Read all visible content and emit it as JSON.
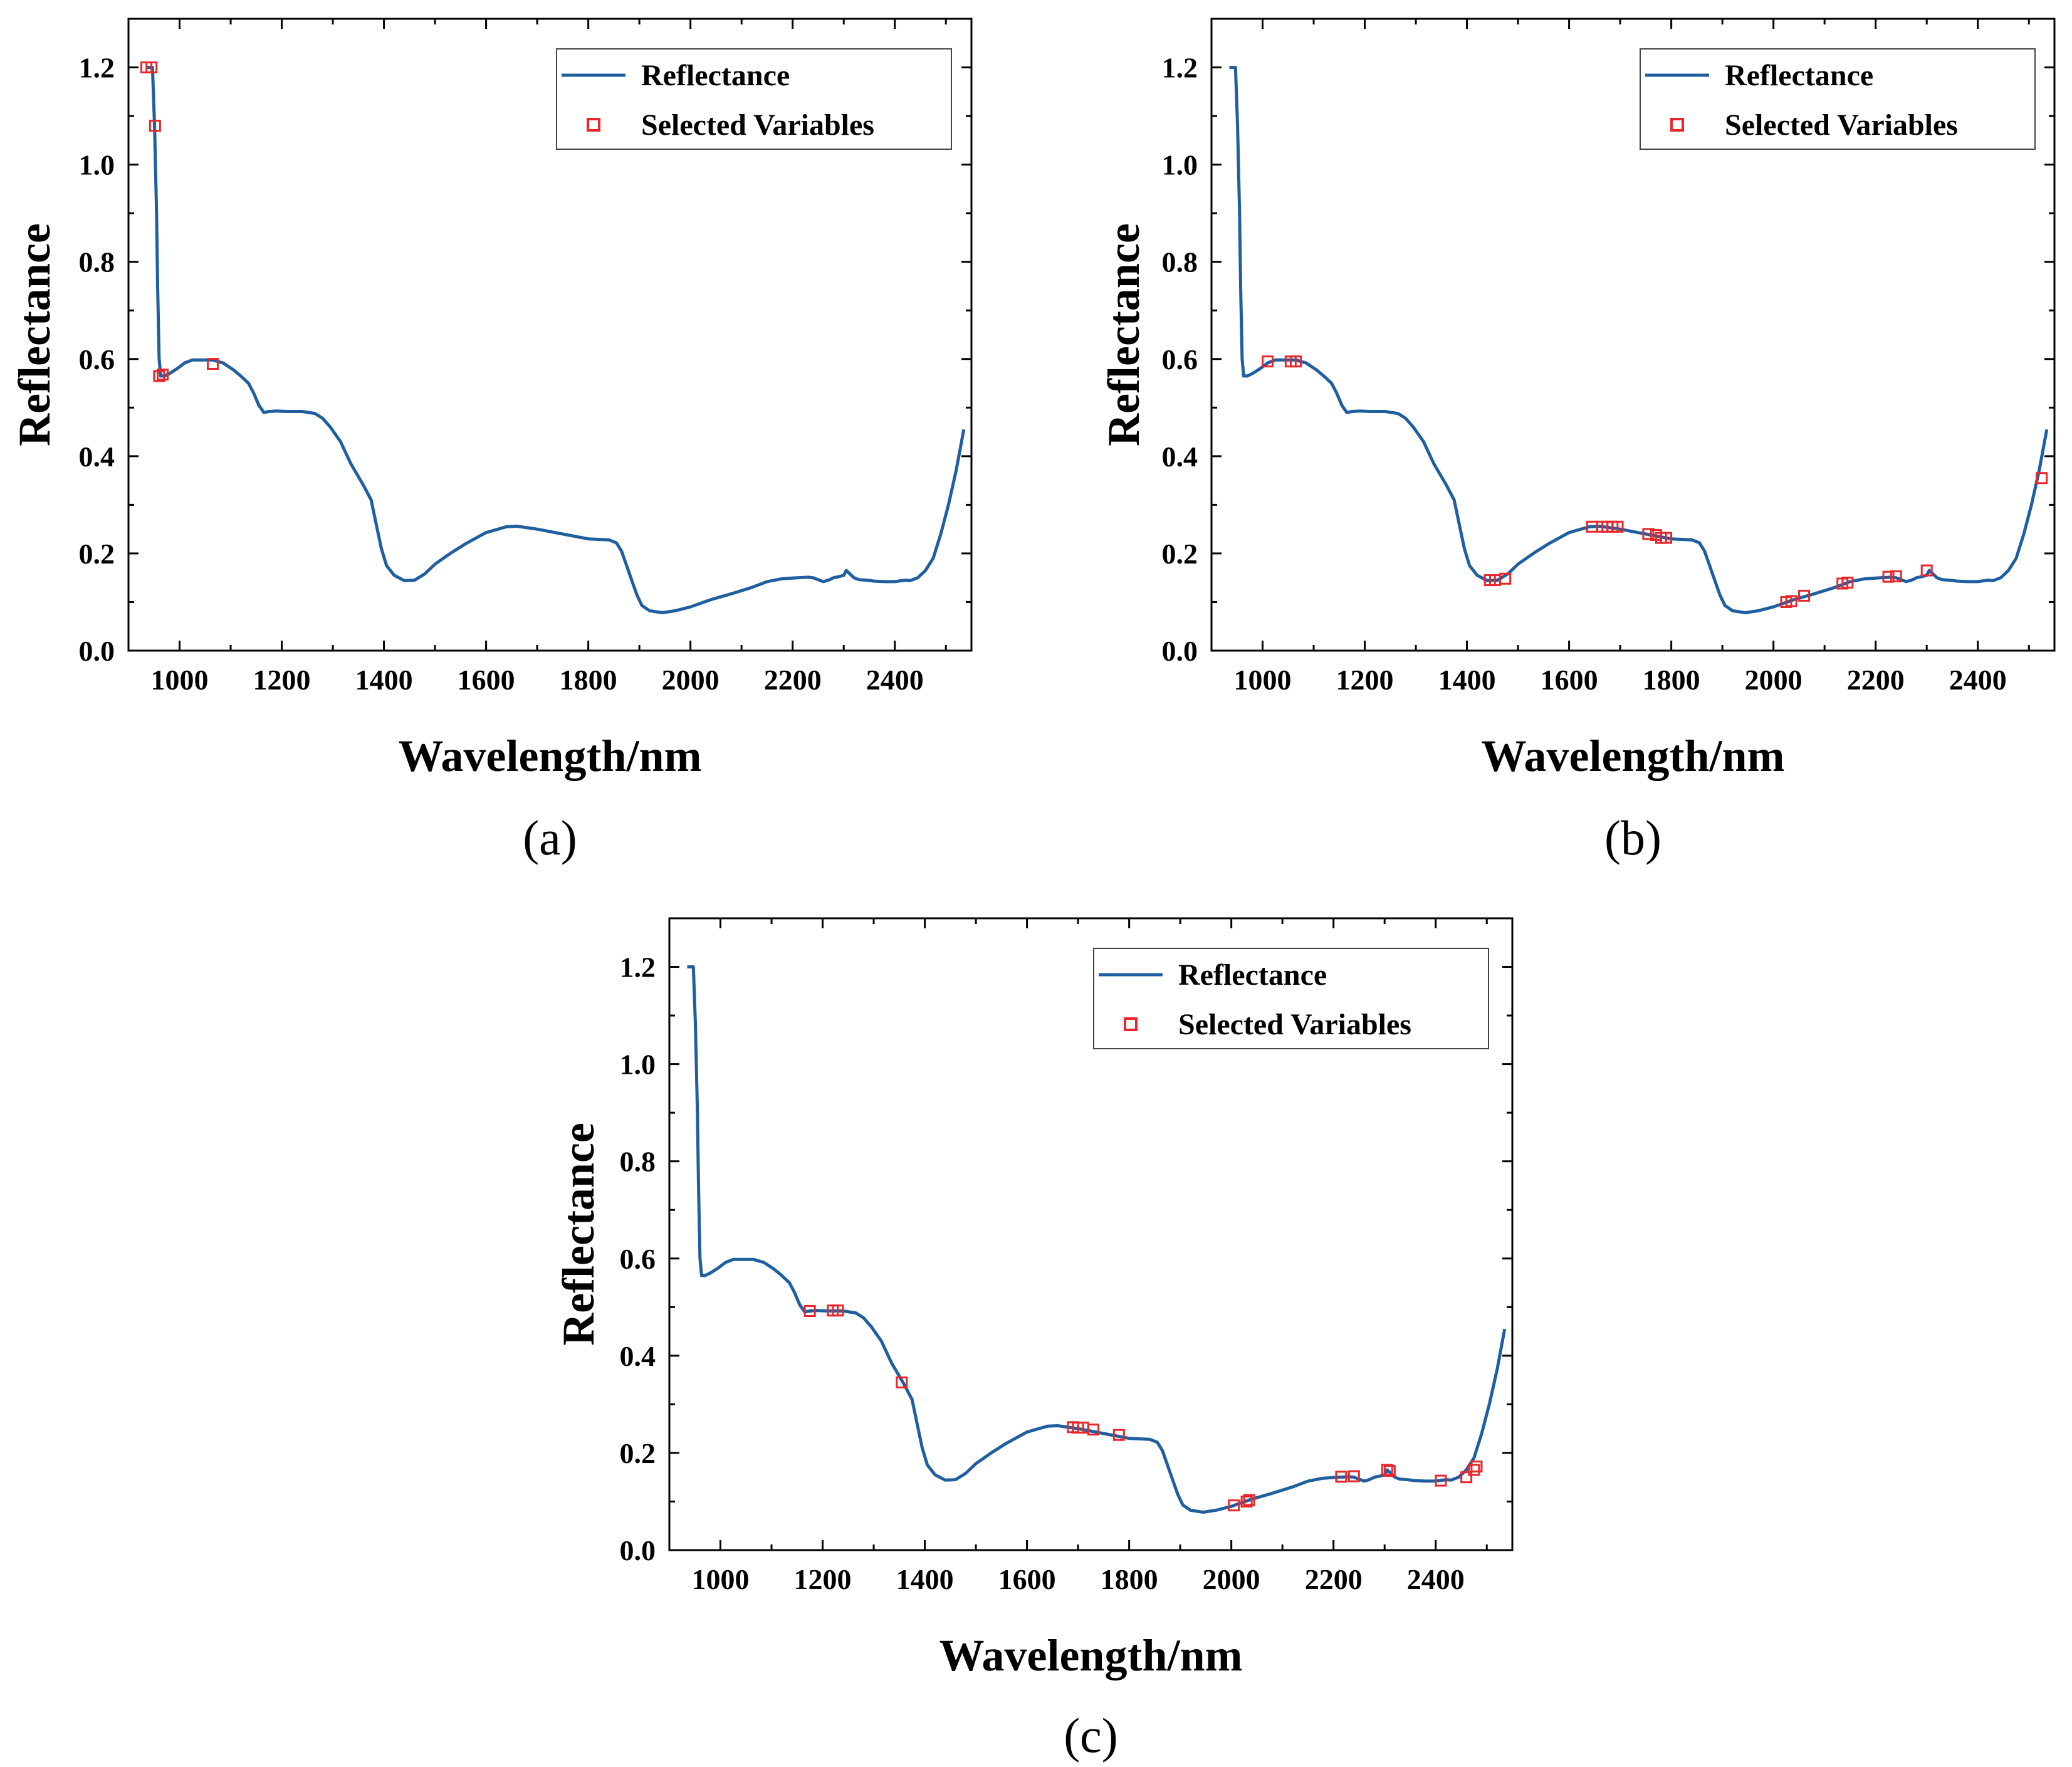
{
  "figure": {
    "panels": [
      {
        "id": "a",
        "caption": "(a)",
        "xlabel": "Wavelength/nm",
        "ylabel": "Reflectance",
        "legend": {
          "position": "top-right",
          "line_label": "Reflectance",
          "marker_label": "Selected Variables"
        }
      },
      {
        "id": "b",
        "caption": "(b)",
        "xlabel": "Wavelength/nm",
        "ylabel": "Reflectance",
        "legend": {
          "position": "top-right",
          "line_label": "Reflectance",
          "marker_label": "Selected Variables"
        }
      },
      {
        "id": "c",
        "caption": "(c)",
        "xlabel": "Wavelength/nm",
        "ylabel": "Reflectance",
        "legend": {
          "position": "top-right",
          "line_label": "Reflectance",
          "marker_label": "Selected Variables"
        }
      }
    ]
  },
  "colors": {
    "line": "#1f5fa0",
    "marker": "#e8262b",
    "axis": "#000000"
  },
  "chart_data": [
    {
      "type": "line",
      "panel": "a",
      "xlim": [
        900,
        2550
      ],
      "ylim": [
        0,
        1.3
      ],
      "xticks": [
        1000,
        1200,
        1400,
        1600,
        1800,
        2000,
        2200,
        2400
      ],
      "yticks": [
        0.0,
        0.2,
        0.4,
        0.6,
        0.8,
        1.0,
        1.2
      ],
      "grid": false,
      "series": [
        {
          "name": "Reflectance",
          "kind": "line",
          "x": [
            935,
            947,
            951,
            955,
            957,
            960,
            963,
            970,
            980,
            995,
            1010,
            1025,
            1045,
            1065,
            1085,
            1105,
            1120,
            1135,
            1145,
            1155,
            1165,
            1175,
            1190,
            1210,
            1240,
            1265,
            1280,
            1295,
            1315,
            1335,
            1360,
            1375,
            1385,
            1395,
            1405,
            1420,
            1440,
            1460,
            1480,
            1500,
            1530,
            1560,
            1600,
            1640,
            1660,
            1700,
            1760,
            1800,
            1840,
            1855,
            1865,
            1875,
            1885,
            1895,
            1905,
            1920,
            1945,
            1970,
            2000,
            2040,
            2080,
            2120,
            2150,
            2180,
            2210,
            2230,
            2240,
            2250,
            2260,
            2270,
            2280,
            2290,
            2300,
            2305,
            2310,
            2315,
            2320,
            2330,
            2345,
            2360,
            2380,
            2400,
            2420,
            2430,
            2445,
            2460,
            2475,
            2490,
            2505,
            2520,
            2535
          ],
          "y": [
            1.2,
            1.2,
            1.08,
            0.9,
            0.75,
            0.6,
            0.565,
            0.565,
            0.57,
            0.58,
            0.592,
            0.598,
            0.598,
            0.598,
            0.592,
            0.578,
            0.565,
            0.55,
            0.53,
            0.505,
            0.49,
            0.492,
            0.493,
            0.492,
            0.492,
            0.488,
            0.478,
            0.46,
            0.43,
            0.385,
            0.34,
            0.31,
            0.26,
            0.21,
            0.175,
            0.155,
            0.144,
            0.145,
            0.158,
            0.178,
            0.2,
            0.22,
            0.243,
            0.255,
            0.256,
            0.25,
            0.238,
            0.23,
            0.228,
            0.222,
            0.205,
            0.175,
            0.145,
            0.115,
            0.093,
            0.082,
            0.078,
            0.082,
            0.09,
            0.105,
            0.117,
            0.13,
            0.142,
            0.148,
            0.15,
            0.151,
            0.15,
            0.146,
            0.142,
            0.145,
            0.15,
            0.152,
            0.155,
            0.165,
            0.16,
            0.155,
            0.15,
            0.146,
            0.145,
            0.143,
            0.142,
            0.142,
            0.145,
            0.144,
            0.15,
            0.165,
            0.19,
            0.24,
            0.3,
            0.37,
            0.455
          ]
        },
        {
          "name": "Selected Variables",
          "kind": "marker",
          "x": [
            935,
            945,
            952,
            960,
            967,
            1065
          ],
          "y": [
            1.2,
            1.2,
            1.08,
            0.565,
            0.568,
            0.59
          ]
        }
      ]
    },
    {
      "type": "line",
      "panel": "b",
      "xlim": [
        900,
        2550
      ],
      "ylim": [
        0,
        1.3
      ],
      "xticks": [
        1000,
        1200,
        1400,
        1600,
        1800,
        2000,
        2200,
        2400
      ],
      "yticks": [
        0.0,
        0.2,
        0.4,
        0.6,
        0.8,
        1.0,
        1.2
      ],
      "grid": false,
      "series": [
        {
          "name": "Reflectance",
          "kind": "line",
          "x": [
            935,
            947,
            951,
            955,
            957,
            960,
            963,
            970,
            980,
            995,
            1010,
            1025,
            1045,
            1065,
            1085,
            1105,
            1120,
            1135,
            1145,
            1155,
            1165,
            1175,
            1190,
            1210,
            1240,
            1265,
            1280,
            1295,
            1315,
            1335,
            1360,
            1375,
            1385,
            1395,
            1405,
            1420,
            1440,
            1460,
            1480,
            1500,
            1530,
            1560,
            1600,
            1640,
            1660,
            1700,
            1760,
            1800,
            1840,
            1855,
            1865,
            1875,
            1885,
            1895,
            1905,
            1920,
            1945,
            1970,
            2000,
            2040,
            2080,
            2120,
            2150,
            2180,
            2210,
            2230,
            2240,
            2250,
            2260,
            2270,
            2280,
            2290,
            2300,
            2305,
            2310,
            2315,
            2320,
            2330,
            2345,
            2360,
            2380,
            2400,
            2420,
            2430,
            2445,
            2460,
            2475,
            2490,
            2505,
            2520,
            2535
          ],
          "y": [
            1.2,
            1.2,
            1.08,
            0.9,
            0.75,
            0.6,
            0.565,
            0.565,
            0.57,
            0.58,
            0.592,
            0.598,
            0.598,
            0.598,
            0.592,
            0.578,
            0.565,
            0.55,
            0.53,
            0.505,
            0.49,
            0.492,
            0.493,
            0.492,
            0.492,
            0.488,
            0.478,
            0.46,
            0.43,
            0.385,
            0.34,
            0.31,
            0.26,
            0.21,
            0.175,
            0.155,
            0.144,
            0.145,
            0.158,
            0.178,
            0.2,
            0.22,
            0.243,
            0.255,
            0.256,
            0.25,
            0.238,
            0.23,
            0.228,
            0.222,
            0.205,
            0.175,
            0.145,
            0.115,
            0.093,
            0.082,
            0.078,
            0.082,
            0.09,
            0.105,
            0.117,
            0.13,
            0.142,
            0.148,
            0.15,
            0.151,
            0.15,
            0.146,
            0.142,
            0.145,
            0.15,
            0.152,
            0.155,
            0.165,
            0.16,
            0.155,
            0.15,
            0.146,
            0.145,
            0.143,
            0.142,
            0.142,
            0.145,
            0.144,
            0.15,
            0.165,
            0.19,
            0.24,
            0.3,
            0.37,
            0.455
          ]
        },
        {
          "name": "Selected Variables",
          "kind": "marker",
          "x": [
            1010,
            1055,
            1065,
            1445,
            1455,
            1475,
            1645,
            1665,
            1675,
            1685,
            1695,
            1755,
            1770,
            1780,
            1790,
            2025,
            2035,
            2060,
            2135,
            2145,
            2225,
            2240,
            2300,
            2525
          ],
          "y": [
            0.595,
            0.595,
            0.595,
            0.145,
            0.145,
            0.148,
            0.255,
            0.255,
            0.255,
            0.255,
            0.255,
            0.24,
            0.238,
            0.232,
            0.232,
            0.1,
            0.102,
            0.113,
            0.138,
            0.14,
            0.152,
            0.153,
            0.165,
            0.355
          ]
        }
      ]
    },
    {
      "type": "line",
      "panel": "c",
      "xlim": [
        900,
        2550
      ],
      "ylim": [
        0,
        1.3
      ],
      "xticks": [
        1000,
        1200,
        1400,
        1600,
        1800,
        2000,
        2200,
        2400
      ],
      "yticks": [
        0.0,
        0.2,
        0.4,
        0.6,
        0.8,
        1.0,
        1.2
      ],
      "grid": false,
      "series": [
        {
          "name": "Reflectance",
          "kind": "line",
          "x": [
            935,
            947,
            951,
            955,
            957,
            960,
            963,
            970,
            980,
            995,
            1010,
            1025,
            1045,
            1065,
            1085,
            1105,
            1120,
            1135,
            1145,
            1155,
            1165,
            1175,
            1190,
            1210,
            1240,
            1265,
            1280,
            1295,
            1315,
            1335,
            1360,
            1375,
            1385,
            1395,
            1405,
            1420,
            1440,
            1460,
            1480,
            1500,
            1530,
            1560,
            1600,
            1640,
            1660,
            1700,
            1760,
            1800,
            1840,
            1855,
            1865,
            1875,
            1885,
            1895,
            1905,
            1920,
            1945,
            1970,
            2000,
            2040,
            2080,
            2120,
            2150,
            2180,
            2210,
            2230,
            2240,
            2250,
            2260,
            2270,
            2280,
            2290,
            2300,
            2305,
            2310,
            2315,
            2320,
            2330,
            2345,
            2360,
            2380,
            2400,
            2420,
            2430,
            2445,
            2460,
            2475,
            2490,
            2505,
            2520,
            2535
          ],
          "y": [
            1.2,
            1.2,
            1.08,
            0.9,
            0.75,
            0.6,
            0.565,
            0.565,
            0.57,
            0.58,
            0.592,
            0.598,
            0.598,
            0.598,
            0.592,
            0.578,
            0.565,
            0.55,
            0.53,
            0.505,
            0.49,
            0.492,
            0.493,
            0.492,
            0.492,
            0.488,
            0.478,
            0.46,
            0.43,
            0.385,
            0.34,
            0.31,
            0.26,
            0.21,
            0.175,
            0.155,
            0.144,
            0.145,
            0.158,
            0.178,
            0.2,
            0.22,
            0.243,
            0.255,
            0.256,
            0.25,
            0.238,
            0.23,
            0.228,
            0.222,
            0.205,
            0.175,
            0.145,
            0.115,
            0.093,
            0.082,
            0.078,
            0.082,
            0.09,
            0.105,
            0.117,
            0.13,
            0.142,
            0.148,
            0.15,
            0.151,
            0.15,
            0.146,
            0.142,
            0.145,
            0.15,
            0.152,
            0.155,
            0.165,
            0.16,
            0.155,
            0.15,
            0.146,
            0.145,
            0.143,
            0.142,
            0.142,
            0.145,
            0.144,
            0.15,
            0.165,
            0.19,
            0.24,
            0.3,
            0.37,
            0.455
          ]
        },
        {
          "name": "Selected Variables",
          "kind": "marker",
          "x": [
            1175,
            1220,
            1230,
            1355,
            1690,
            1700,
            1710,
            1730,
            1780,
            2005,
            2030,
            2035,
            2215,
            2240,
            2305,
            2310,
            2410,
            2460,
            2475,
            2480
          ],
          "y": [
            0.492,
            0.493,
            0.493,
            0.345,
            0.253,
            0.252,
            0.252,
            0.248,
            0.237,
            0.092,
            0.1,
            0.103,
            0.151,
            0.152,
            0.165,
            0.163,
            0.143,
            0.15,
            0.165,
            0.172
          ]
        }
      ]
    }
  ]
}
